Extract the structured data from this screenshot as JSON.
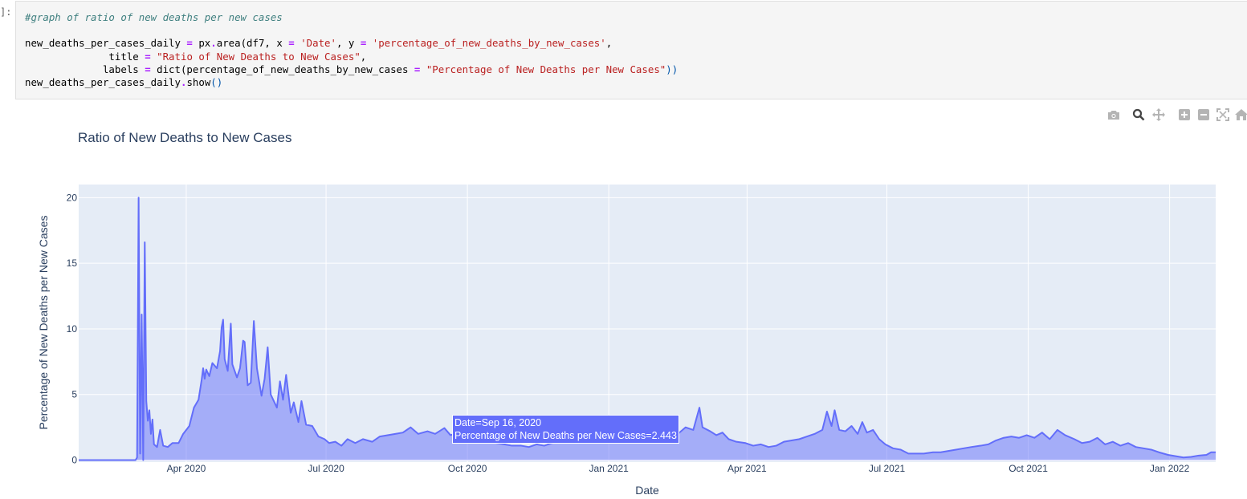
{
  "cell": {
    "prompt": "]:",
    "code_lines": [
      [
        {
          "t": "#graph of ratio of new deaths per new cases",
          "c": "cm"
        }
      ],
      [],
      [
        {
          "t": "new_deaths_per_cases_daily "
        },
        {
          "t": "=",
          "c": "op"
        },
        {
          "t": " px"
        },
        {
          "t": ".",
          "c": "op"
        },
        {
          "t": "area(df7, x "
        },
        {
          "t": "=",
          "c": "op"
        },
        {
          "t": " "
        },
        {
          "t": "'Date'",
          "c": "st"
        },
        {
          "t": ", y "
        },
        {
          "t": "=",
          "c": "op"
        },
        {
          "t": " "
        },
        {
          "t": "'percentage_of_new_deaths_by_new_cases'",
          "c": "st"
        },
        {
          "t": ","
        }
      ],
      [
        {
          "t": "              title "
        },
        {
          "t": "=",
          "c": "op"
        },
        {
          "t": " "
        },
        {
          "t": "\"Ratio of New Deaths to New Cases\"",
          "c": "st"
        },
        {
          "t": ","
        }
      ],
      [
        {
          "t": "             labels "
        },
        {
          "t": "=",
          "c": "op"
        },
        {
          "t": " dict(percentage_of_new_deaths_by_new_cases "
        },
        {
          "t": "=",
          "c": "op"
        },
        {
          "t": " "
        },
        {
          "t": "\"Percentage of New Deaths per New Cases\"",
          "c": "st"
        },
        {
          "t": "))",
          "c": "p"
        }
      ],
      [
        {
          "t": "new_deaths_per_cases_daily"
        },
        {
          "t": ".",
          "c": "op"
        },
        {
          "t": "show"
        },
        {
          "t": "()",
          "c": "p"
        }
      ]
    ]
  },
  "modebar": {
    "icons": [
      "camera-icon",
      "zoom-icon",
      "pan-icon",
      "zoom-in-icon",
      "zoom-out-icon",
      "autoscale-icon",
      "home-icon"
    ],
    "color": "#b4b4b4",
    "active_color": "#444444"
  },
  "chart_data": {
    "type": "area",
    "title": "Ratio of New Deaths to New Cases",
    "xlabel": "Date",
    "ylabel": "Percentage of New Deaths per New Cases",
    "x_tick_labels": [
      "Apr 2020",
      "Jul 2020",
      "Oct 2020",
      "Jan 2021",
      "Apr 2021",
      "Jul 2021",
      "Oct 2021",
      "Jan 2022"
    ],
    "x_tick_dates": [
      "2020-04-01",
      "2020-07-01",
      "2020-10-01",
      "2021-01-01",
      "2021-04-01",
      "2021-07-01",
      "2021-10-01",
      "2022-01-01"
    ],
    "y_ticks": [
      0,
      5,
      10,
      15,
      20
    ],
    "xlim": [
      "2020-01-22",
      "2022-01-31"
    ],
    "ylim": [
      -0.15,
      21
    ],
    "grid": true,
    "colors": {
      "line": "#636efa",
      "fill": "#636efa",
      "plot_bg": "#e5ecf6",
      "grid": "#ffffff"
    },
    "series": [
      {
        "points": [
          [
            "2020-01-22",
            0
          ],
          [
            "2020-02-28",
            0
          ],
          [
            "2020-02-29",
            0.2
          ],
          [
            "2020-03-01",
            20
          ],
          [
            "2020-03-02",
            0.5
          ],
          [
            "2020-03-03",
            11.1
          ],
          [
            "2020-03-04",
            0
          ],
          [
            "2020-03-05",
            16.6
          ],
          [
            "2020-03-06",
            4.5
          ],
          [
            "2020-03-07",
            3
          ],
          [
            "2020-03-08",
            3.8
          ],
          [
            "2020-03-09",
            2
          ],
          [
            "2020-03-10",
            3.1
          ],
          [
            "2020-03-11",
            1.2
          ],
          [
            "2020-03-13",
            1
          ],
          [
            "2020-03-15",
            2.3
          ],
          [
            "2020-03-17",
            1.1
          ],
          [
            "2020-03-20",
            1
          ],
          [
            "2020-03-23",
            1.3
          ],
          [
            "2020-03-27",
            1.3
          ],
          [
            "2020-03-30",
            2
          ],
          [
            "2020-04-03",
            2.6
          ],
          [
            "2020-04-06",
            4
          ],
          [
            "2020-04-09",
            4.6
          ],
          [
            "2020-04-11",
            6.1
          ],
          [
            "2020-04-12",
            7
          ],
          [
            "2020-04-13",
            6.2
          ],
          [
            "2020-04-14",
            6.9
          ],
          [
            "2020-04-16",
            6.4
          ],
          [
            "2020-04-18",
            7.4
          ],
          [
            "2020-04-21",
            7
          ],
          [
            "2020-04-23",
            8.3
          ],
          [
            "2020-04-24",
            10.1
          ],
          [
            "2020-04-25",
            10.7
          ],
          [
            "2020-04-26",
            7.7
          ],
          [
            "2020-04-28",
            6.8
          ],
          [
            "2020-04-30",
            10.4
          ],
          [
            "2020-05-01",
            7.3
          ],
          [
            "2020-05-04",
            6.3
          ],
          [
            "2020-05-06",
            7
          ],
          [
            "2020-05-08",
            9.1
          ],
          [
            "2020-05-09",
            9
          ],
          [
            "2020-05-11",
            5.7
          ],
          [
            "2020-05-13",
            5.9
          ],
          [
            "2020-05-15",
            10.6
          ],
          [
            "2020-05-17",
            7
          ],
          [
            "2020-05-20",
            4.9
          ],
          [
            "2020-05-22",
            6.2
          ],
          [
            "2020-05-24",
            8.6
          ],
          [
            "2020-05-26",
            5
          ],
          [
            "2020-05-28",
            4.5
          ],
          [
            "2020-05-30",
            4
          ],
          [
            "2020-06-01",
            6
          ],
          [
            "2020-06-03",
            4.6
          ],
          [
            "2020-06-05",
            6.5
          ],
          [
            "2020-06-08",
            3.6
          ],
          [
            "2020-06-10",
            4.4
          ],
          [
            "2020-06-13",
            2.9
          ],
          [
            "2020-06-15",
            4.5
          ],
          [
            "2020-06-18",
            2.7
          ],
          [
            "2020-06-22",
            2.6
          ],
          [
            "2020-06-26",
            1.8
          ],
          [
            "2020-06-30",
            1.6
          ],
          [
            "2020-07-03",
            1.3
          ],
          [
            "2020-07-07",
            1.4
          ],
          [
            "2020-07-11",
            1.1
          ],
          [
            "2020-07-15",
            1.6
          ],
          [
            "2020-07-20",
            1.3
          ],
          [
            "2020-07-25",
            1.6
          ],
          [
            "2020-07-31",
            1.4
          ],
          [
            "2020-08-05",
            1.8
          ],
          [
            "2020-08-10",
            1.9
          ],
          [
            "2020-08-15",
            2
          ],
          [
            "2020-08-20",
            2.1
          ],
          [
            "2020-08-25",
            2.5
          ],
          [
            "2020-08-30",
            2
          ],
          [
            "2020-09-05",
            2.2
          ],
          [
            "2020-09-10",
            2
          ],
          [
            "2020-09-16",
            2.443
          ],
          [
            "2020-09-20",
            1.9
          ],
          [
            "2020-09-25",
            2.1
          ],
          [
            "2020-09-30",
            2
          ],
          [
            "2020-10-05",
            1.6
          ],
          [
            "2020-10-10",
            1.8
          ],
          [
            "2020-10-15",
            1.5
          ],
          [
            "2020-10-20",
            1.3
          ],
          [
            "2020-10-25",
            1.2
          ],
          [
            "2020-10-30",
            1.1
          ],
          [
            "2020-11-05",
            1.1
          ],
          [
            "2020-11-10",
            1
          ],
          [
            "2020-11-15",
            1.2
          ],
          [
            "2020-11-20",
            1.1
          ],
          [
            "2020-11-25",
            1.3
          ],
          [
            "2020-11-30",
            1.4
          ],
          [
            "2020-12-05",
            1.5
          ],
          [
            "2020-12-10",
            1.6
          ],
          [
            "2020-12-15",
            1.7
          ],
          [
            "2020-12-20",
            1.6
          ],
          [
            "2020-12-25",
            1.5
          ],
          [
            "2020-12-31",
            1.6
          ],
          [
            "2021-01-05",
            1.6
          ],
          [
            "2021-01-10",
            1.7
          ],
          [
            "2021-01-15",
            1.9
          ],
          [
            "2021-01-20",
            2.2
          ],
          [
            "2021-01-25",
            2.3
          ],
          [
            "2021-01-31",
            2
          ],
          [
            "2021-02-05",
            2.4
          ],
          [
            "2021-02-10",
            2.6
          ],
          [
            "2021-02-15",
            2
          ],
          [
            "2021-02-20",
            2.5
          ],
          [
            "2021-02-25",
            2.3
          ],
          [
            "2021-03-01",
            4
          ],
          [
            "2021-03-03",
            2.5
          ],
          [
            "2021-03-08",
            2.2
          ],
          [
            "2021-03-12",
            1.9
          ],
          [
            "2021-03-16",
            2.1
          ],
          [
            "2021-03-20",
            1.6
          ],
          [
            "2021-03-25",
            1.4
          ],
          [
            "2021-03-31",
            1.3
          ],
          [
            "2021-04-05",
            1.1
          ],
          [
            "2021-04-10",
            1.2
          ],
          [
            "2021-04-15",
            1
          ],
          [
            "2021-04-20",
            1.1
          ],
          [
            "2021-04-25",
            1.4
          ],
          [
            "2021-04-30",
            1.5
          ],
          [
            "2021-05-05",
            1.6
          ],
          [
            "2021-05-10",
            1.8
          ],
          [
            "2021-05-15",
            2
          ],
          [
            "2021-05-20",
            2.3
          ],
          [
            "2021-05-23",
            3.7
          ],
          [
            "2021-05-26",
            2.6
          ],
          [
            "2021-05-28",
            3.8
          ],
          [
            "2021-05-31",
            2.3
          ],
          [
            "2021-06-04",
            2.2
          ],
          [
            "2021-06-08",
            2.6
          ],
          [
            "2021-06-12",
            2
          ],
          [
            "2021-06-15",
            2.9
          ],
          [
            "2021-06-18",
            2.1
          ],
          [
            "2021-06-22",
            2.3
          ],
          [
            "2021-06-26",
            1.6
          ],
          [
            "2021-06-30",
            1.2
          ],
          [
            "2021-07-05",
            0.9
          ],
          [
            "2021-07-10",
            0.8
          ],
          [
            "2021-07-15",
            0.5
          ],
          [
            "2021-07-20",
            0.5
          ],
          [
            "2021-07-25",
            0.5
          ],
          [
            "2021-07-31",
            0.6
          ],
          [
            "2021-08-05",
            0.6
          ],
          [
            "2021-08-10",
            0.7
          ],
          [
            "2021-08-15",
            0.8
          ],
          [
            "2021-08-20",
            0.9
          ],
          [
            "2021-08-25",
            1
          ],
          [
            "2021-08-31",
            1.1
          ],
          [
            "2021-09-05",
            1.2
          ],
          [
            "2021-09-10",
            1.5
          ],
          [
            "2021-09-15",
            1.7
          ],
          [
            "2021-09-20",
            1.8
          ],
          [
            "2021-09-25",
            1.7
          ],
          [
            "2021-09-30",
            1.9
          ],
          [
            "2021-10-05",
            1.7
          ],
          [
            "2021-10-10",
            2.1
          ],
          [
            "2021-10-15",
            1.6
          ],
          [
            "2021-10-20",
            2.3
          ],
          [
            "2021-10-25",
            1.9
          ],
          [
            "2021-10-31",
            1.6
          ],
          [
            "2021-11-05",
            1.3
          ],
          [
            "2021-11-10",
            1.4
          ],
          [
            "2021-11-15",
            1.7
          ],
          [
            "2021-11-20",
            1.2
          ],
          [
            "2021-11-25",
            1.4
          ],
          [
            "2021-11-30",
            1.1
          ],
          [
            "2021-12-05",
            1.3
          ],
          [
            "2021-12-10",
            1
          ],
          [
            "2021-12-15",
            0.9
          ],
          [
            "2021-12-20",
            0.8
          ],
          [
            "2021-12-25",
            0.6
          ],
          [
            "2021-12-31",
            0.4
          ],
          [
            "2022-01-05",
            0.3
          ],
          [
            "2022-01-10",
            0.2
          ],
          [
            "2022-01-15",
            0.25
          ],
          [
            "2022-01-20",
            0.35
          ],
          [
            "2022-01-25",
            0.4
          ],
          [
            "2022-01-28",
            0.6
          ],
          [
            "2022-01-31",
            0.6
          ]
        ]
      }
    ],
    "hover": {
      "date_line": "Date=Sep 16, 2020",
      "value_line": "Percentage of New Deaths per New Cases=2.443"
    }
  }
}
